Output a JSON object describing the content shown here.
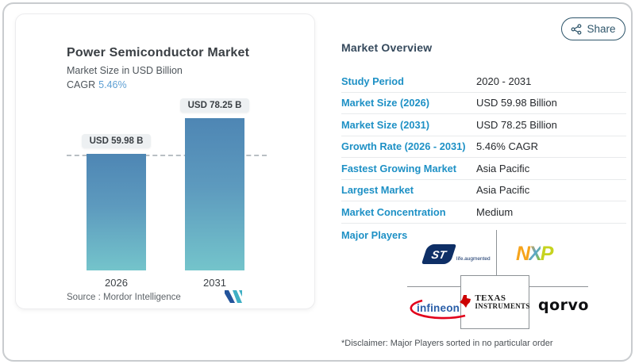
{
  "share": {
    "label": "Share"
  },
  "chart_card": {
    "title": "Power Semiconductor Market",
    "subtitle": "Market Size in USD Billion",
    "cagr_label": "CAGR",
    "cagr_value": "5.46%",
    "source_label": "Source :",
    "source_value": "Mordor Intelligence",
    "bars": [
      {
        "year": "2026",
        "badge": "USD 59.98 B"
      },
      {
        "year": "2031",
        "badge": "USD 78.25 B"
      }
    ]
  },
  "chart_data": {
    "type": "bar",
    "categories": [
      "2026",
      "2031"
    ],
    "values": [
      59.98,
      78.25
    ],
    "title": "Power Semiconductor Market",
    "subtitle": "Market Size in USD Billion",
    "unit": "USD Billion",
    "data_labels": [
      "USD 59.98 B",
      "USD 78.25 B"
    ],
    "annotations": [
      "dashed reference line at 59.98"
    ],
    "xlabel": "",
    "ylabel": "",
    "ylim": [
      0,
      78.25
    ],
    "grid": false,
    "legend": false,
    "bar_color_gradient": [
      "#4e86b4",
      "#74c4cb"
    ],
    "source": "Mordor Intelligence",
    "cagr": "5.46%"
  },
  "overview": {
    "title": "Market Overview",
    "rows": [
      {
        "label": "Study Period",
        "value": "2020 - 2031"
      },
      {
        "label": "Market Size (2026)",
        "value": "USD 59.98 Billion"
      },
      {
        "label": "Market Size (2031)",
        "value": "USD 78.25 Billion"
      },
      {
        "label": "Growth Rate (2026 - 2031)",
        "value": "5.46% CAGR"
      },
      {
        "label": "Fastest Growing Market",
        "value": "Asia Pacific"
      },
      {
        "label": "Largest Market",
        "value": "Asia Pacific"
      },
      {
        "label": "Market Concentration",
        "value": "Medium"
      }
    ],
    "major_players_label": "Major Players",
    "players": {
      "st": {
        "name": "STMicroelectronics",
        "st_text": "ST",
        "tagline": "life.augmented"
      },
      "nxp": {
        "name": "NXP",
        "n": "N",
        "x": "X",
        "p": "P"
      },
      "infineon": {
        "name": "Infineon",
        "word": "infineon"
      },
      "ti": {
        "name": "Texas Instruments",
        "line1": "TEXAS",
        "line2": "INSTRUMENTS"
      },
      "qorvo": {
        "name": "Qorvo",
        "word": "qorvo"
      }
    },
    "disclaimer": "*Disclaimer: Major Players sorted in no particular order"
  },
  "colors": {
    "label_blue": "#1d90c5",
    "cagr_blue": "#5d9fd3",
    "bar_top": "#4e86b4",
    "bar_bottom": "#74c4cb",
    "share_accent": "#2f566b",
    "heading": "#35495c"
  }
}
